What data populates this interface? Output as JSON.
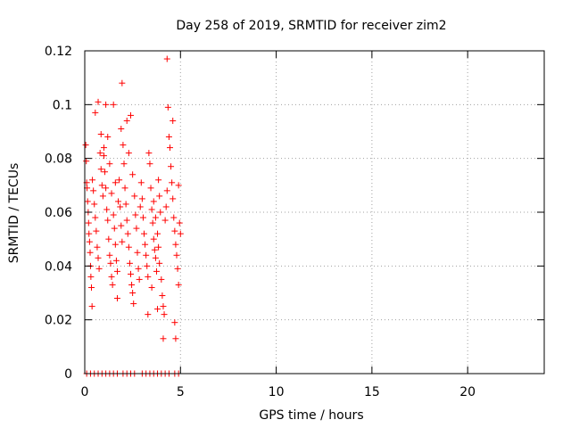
{
  "chart_data": {
    "type": "scatter",
    "title": "Day 258 of 2019, SRMTID for receiver zim2",
    "xlabel": "GPS time / hours",
    "ylabel": "SRMTID / TECUs",
    "xlim": [
      0,
      24
    ],
    "ylim": [
      0,
      0.12
    ],
    "x_ticks": [
      0,
      5,
      10,
      15,
      20
    ],
    "y_ticks": [
      0,
      0.02,
      0.04,
      0.06,
      0.08,
      0.1,
      0.12
    ],
    "x_tick_labels": [
      "0",
      "5",
      "10",
      "15",
      "20"
    ],
    "y_tick_labels": [
      "0",
      "0.02",
      "0.04",
      "0.06",
      "0.08",
      "0.1",
      "0.12"
    ],
    "grid": true,
    "marker": "+",
    "series": [
      {
        "name": "SRMTID",
        "color": "#ff0000",
        "points": [
          [
            0.05,
            0.085
          ],
          [
            0.08,
            0.079
          ],
          [
            0.1,
            0.071
          ],
          [
            0.12,
            0.069
          ],
          [
            0.15,
            0.064
          ],
          [
            0.18,
            0.06
          ],
          [
            0.2,
            0.056
          ],
          [
            0.22,
            0.052
          ],
          [
            0.25,
            0.049
          ],
          [
            0.28,
            0.045
          ],
          [
            0.3,
            0.04
          ],
          [
            0.32,
            0.036
          ],
          [
            0.35,
            0.032
          ],
          [
            0.38,
            0.025
          ],
          [
            0.4,
            0.072
          ],
          [
            0.45,
            0.068
          ],
          [
            0.5,
            0.063
          ],
          [
            0.55,
            0.058
          ],
          [
            0.6,
            0.053
          ],
          [
            0.65,
            0.047
          ],
          [
            0.7,
            0.043
          ],
          [
            0.75,
            0.039
          ],
          [
            0.8,
            0.082
          ],
          [
            0.85,
            0.076
          ],
          [
            0.9,
            0.07
          ],
          [
            0.95,
            0.066
          ],
          [
            0.55,
            0.097
          ],
          [
            0.7,
            0.101
          ],
          [
            0.85,
            0.089
          ],
          [
            1.0,
            0.084
          ],
          [
            1.05,
            0.075
          ],
          [
            1.1,
            0.069
          ],
          [
            1.15,
            0.061
          ],
          [
            1.2,
            0.057
          ],
          [
            1.25,
            0.05
          ],
          [
            1.3,
            0.044
          ],
          [
            1.35,
            0.041
          ],
          [
            1.4,
            0.036
          ],
          [
            1.45,
            0.033
          ],
          [
            1.0,
            0.081
          ],
          [
            1.1,
            0.1
          ],
          [
            1.2,
            0.088
          ],
          [
            1.3,
            0.078
          ],
          [
            1.4,
            0.067
          ],
          [
            1.5,
            0.059
          ],
          [
            1.55,
            0.054
          ],
          [
            1.6,
            0.048
          ],
          [
            1.65,
            0.042
          ],
          [
            1.7,
            0.038
          ],
          [
            1.5,
            0.1
          ],
          [
            1.6,
            0.071
          ],
          [
            1.7,
            0.028
          ],
          [
            1.75,
            0.064
          ],
          [
            1.8,
            0.072
          ],
          [
            1.85,
            0.062
          ],
          [
            1.9,
            0.055
          ],
          [
            1.95,
            0.049
          ],
          [
            1.9,
            0.091
          ],
          [
            1.95,
            0.108
          ],
          [
            2.0,
            0.085
          ],
          [
            2.05,
            0.078
          ],
          [
            2.1,
            0.069
          ],
          [
            2.15,
            0.063
          ],
          [
            2.2,
            0.057
          ],
          [
            2.25,
            0.052
          ],
          [
            2.3,
            0.047
          ],
          [
            2.35,
            0.041
          ],
          [
            2.4,
            0.037
          ],
          [
            2.45,
            0.033
          ],
          [
            2.5,
            0.03
          ],
          [
            2.55,
            0.026
          ],
          [
            2.2,
            0.094
          ],
          [
            2.3,
            0.082
          ],
          [
            2.4,
            0.096
          ],
          [
            2.5,
            0.074
          ],
          [
            2.6,
            0.066
          ],
          [
            2.65,
            0.059
          ],
          [
            2.7,
            0.054
          ],
          [
            2.75,
            0.045
          ],
          [
            2.8,
            0.039
          ],
          [
            2.85,
            0.035
          ],
          [
            2.9,
            0.062
          ],
          [
            2.95,
            0.071
          ],
          [
            3.0,
            0.065
          ],
          [
            3.05,
            0.058
          ],
          [
            3.1,
            0.052
          ],
          [
            3.15,
            0.048
          ],
          [
            3.2,
            0.044
          ],
          [
            3.25,
            0.04
          ],
          [
            3.3,
            0.036
          ],
          [
            3.35,
            0.082
          ],
          [
            3.4,
            0.078
          ],
          [
            3.45,
            0.069
          ],
          [
            3.5,
            0.061
          ],
          [
            3.55,
            0.056
          ],
          [
            3.6,
            0.05
          ],
          [
            3.65,
            0.046
          ],
          [
            3.7,
            0.043
          ],
          [
            3.75,
            0.038
          ],
          [
            3.3,
            0.022
          ],
          [
            3.5,
            0.032
          ],
          [
            3.6,
            0.064
          ],
          [
            3.7,
            0.058
          ],
          [
            3.8,
            0.024
          ],
          [
            3.85,
            0.072
          ],
          [
            3.9,
            0.066
          ],
          [
            3.95,
            0.06
          ],
          [
            3.8,
            0.052
          ],
          [
            3.85,
            0.047
          ],
          [
            3.9,
            0.041
          ],
          [
            4.0,
            0.035
          ],
          [
            4.05,
            0.029
          ],
          [
            4.1,
            0.025
          ],
          [
            4.1,
            0.013
          ],
          [
            4.15,
            0.022
          ],
          [
            4.2,
            0.057
          ],
          [
            4.25,
            0.062
          ],
          [
            4.3,
            0.068
          ],
          [
            4.3,
            0.117
          ],
          [
            4.35,
            0.099
          ],
          [
            4.4,
            0.088
          ],
          [
            4.45,
            0.084
          ],
          [
            4.5,
            0.077
          ],
          [
            4.55,
            0.071
          ],
          [
            4.6,
            0.065
          ],
          [
            4.6,
            0.094
          ],
          [
            4.65,
            0.058
          ],
          [
            4.7,
            0.053
          ],
          [
            4.7,
            0.019
          ],
          [
            4.75,
            0.013
          ],
          [
            4.75,
            0.048
          ],
          [
            4.8,
            0.044
          ],
          [
            4.85,
            0.039
          ],
          [
            4.9,
            0.033
          ],
          [
            4.9,
            0.07
          ],
          [
            4.95,
            0.056
          ],
          [
            5.0,
            0.052
          ],
          [
            0.1,
            0.0
          ],
          [
            0.3,
            0.0
          ],
          [
            0.5,
            0.0
          ],
          [
            0.7,
            0.0
          ],
          [
            0.9,
            0.0
          ],
          [
            1.1,
            0.0
          ],
          [
            1.3,
            0.0
          ],
          [
            1.5,
            0.0
          ],
          [
            1.7,
            0.0
          ],
          [
            2.0,
            0.0
          ],
          [
            2.2,
            0.0
          ],
          [
            2.4,
            0.0
          ],
          [
            2.6,
            0.0
          ],
          [
            3.0,
            0.0
          ],
          [
            3.2,
            0.0
          ],
          [
            3.4,
            0.0
          ],
          [
            3.6,
            0.0
          ],
          [
            3.8,
            0.0
          ],
          [
            4.0,
            0.0
          ],
          [
            4.2,
            0.0
          ],
          [
            4.4,
            0.0
          ],
          [
            4.7,
            0.0
          ],
          [
            4.9,
            0.0
          ]
        ]
      }
    ]
  }
}
